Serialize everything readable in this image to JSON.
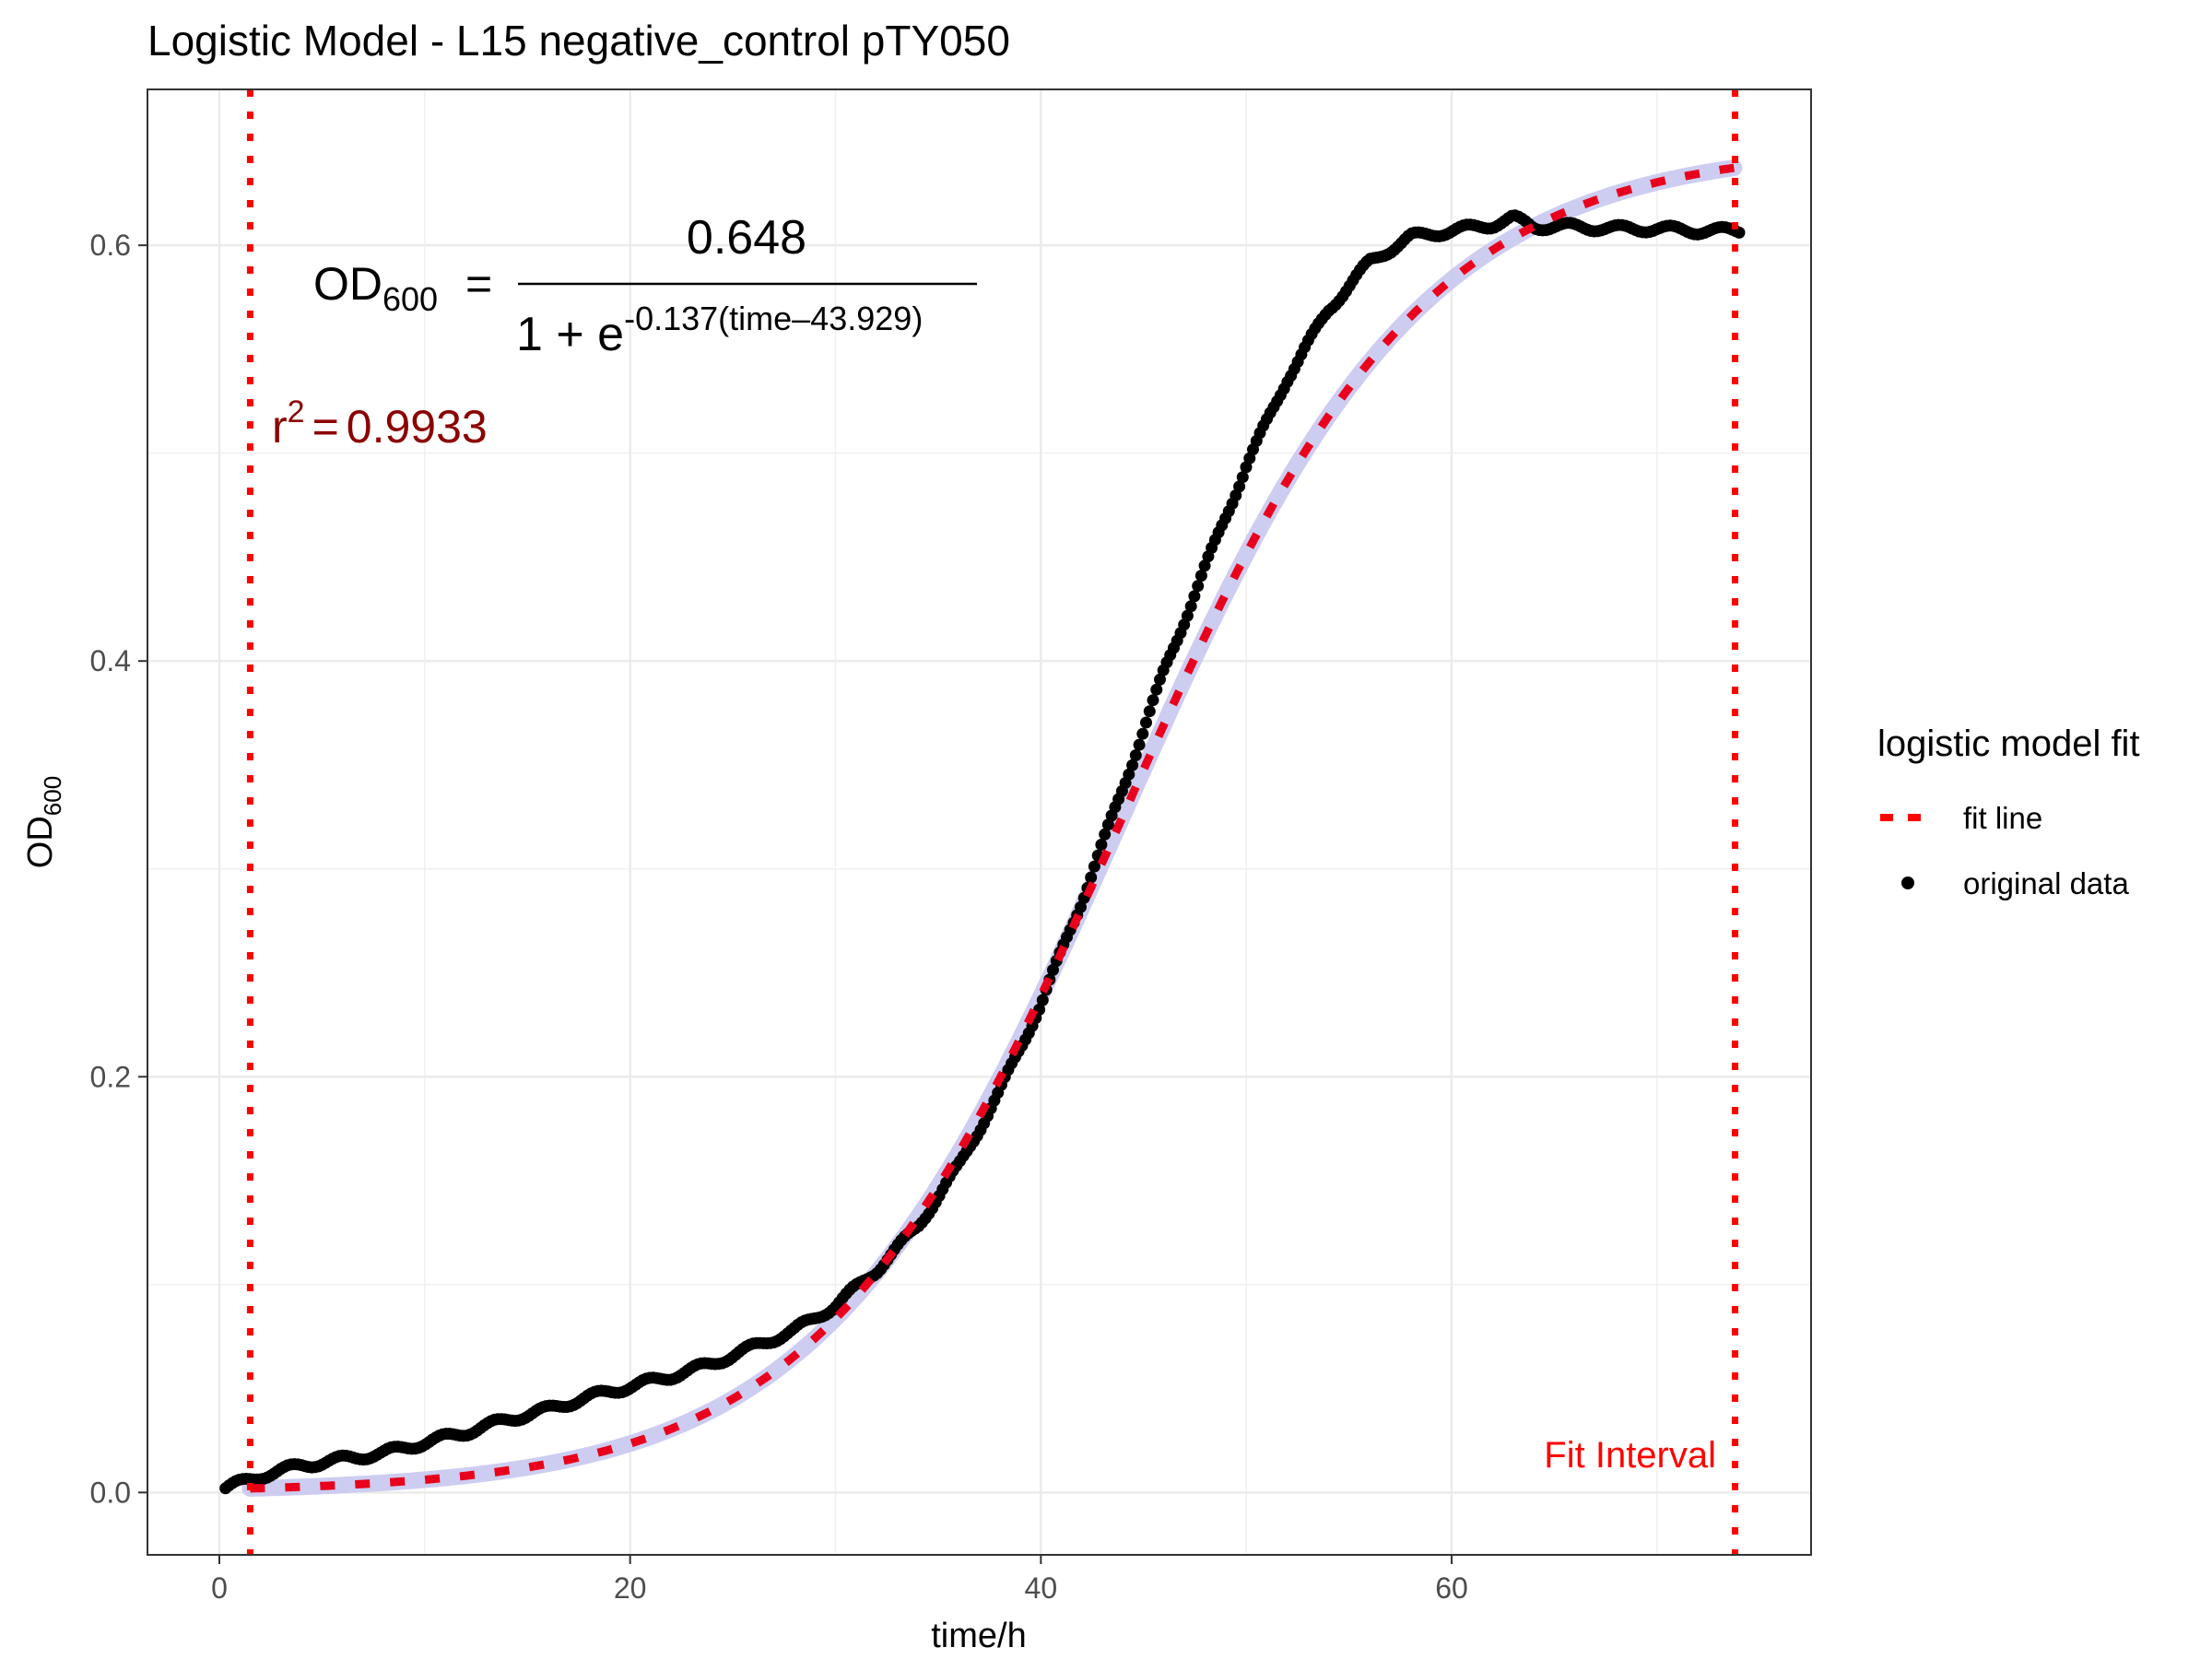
{
  "chart_data": {
    "type": "scatter",
    "title": "Logistic Model -  L15 negative_control pTY050",
    "xlabel": "time/h",
    "ylabel": {
      "base": "OD",
      "sub": "600"
    },
    "xlim": [
      -3.5,
      77.5
    ],
    "ylim": [
      -0.03,
      0.675
    ],
    "x_ticks": [
      0,
      20,
      40,
      60
    ],
    "y_ticks": [
      0.0,
      0.2,
      0.4,
      0.6
    ],
    "x_tick_labels": [
      "0",
      "20",
      "40",
      "60"
    ],
    "y_tick_labels": [
      "0.0",
      "0.2",
      "0.4",
      "0.6"
    ],
    "grid": true,
    "legend": {
      "title": "logistic model fit",
      "placement": "right",
      "entries": [
        {
          "label": "fit line",
          "style": "dashed-line",
          "color": "#ff0000"
        },
        {
          "label": "original data",
          "style": "point",
          "color": "#000000"
        }
      ]
    },
    "model": {
      "K": 0.648,
      "r": 0.137,
      "t0": 43.929,
      "equation": {
        "lhs_base": "OD",
        "lhs_sub": "600",
        "equals": "=",
        "numerator": "0.648",
        "denominator_lead": "1 + e",
        "exponent": "-0.137(time–43.929)"
      },
      "r_squared": {
        "label": "r",
        "power": "2",
        "equals": "=",
        "value": "0.9933"
      }
    },
    "fit_interval": {
      "label": "Fit Interval",
      "start": 1.5,
      "end": 73.8
    },
    "series": [
      {
        "name": "original data",
        "type": "points",
        "color": "#000000",
        "x": [
          0.3,
          2,
          4,
          6,
          8,
          10,
          12,
          14,
          16,
          18,
          20,
          22,
          24,
          26,
          28,
          30,
          32,
          34,
          36,
          38,
          40,
          42,
          44,
          46,
          48,
          50,
          52,
          54,
          56,
          58,
          60,
          62,
          63,
          64,
          66,
          68,
          70,
          72,
          74
        ],
        "y": [
          0.002,
          0.008,
          0.013,
          0.016,
          0.019,
          0.024,
          0.029,
          0.035,
          0.04,
          0.046,
          0.051,
          0.056,
          0.062,
          0.07,
          0.078,
          0.09,
          0.107,
          0.128,
          0.157,
          0.193,
          0.235,
          0.285,
          0.339,
          0.395,
          0.445,
          0.494,
          0.536,
          0.569,
          0.592,
          0.604,
          0.607,
          0.61,
          0.613,
          0.609,
          0.609,
          0.608,
          0.608,
          0.607,
          0.607
        ]
      },
      {
        "name": "fit line",
        "type": "logistic-curve",
        "color": "#e8001c",
        "band_color": "#c8c8f0",
        "x_range": [
          1.5,
          73.8
        ]
      }
    ]
  }
}
